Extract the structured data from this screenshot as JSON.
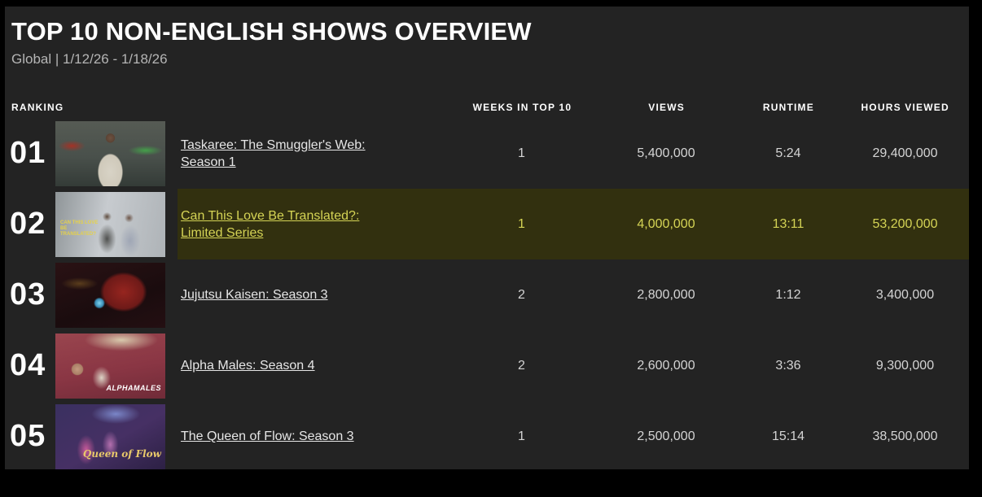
{
  "page": {
    "title": "TOP 10 NON-ENGLISH SHOWS OVERVIEW",
    "subtitle": "Global | 1/12/26 - 1/18/26"
  },
  "table": {
    "headers": {
      "ranking": "RANKING",
      "weeks": "WEEKS IN TOP 10",
      "views": "VIEWS",
      "runtime": "RUNTIME",
      "hours": "HOURS VIEWED"
    },
    "rows": [
      {
        "rank": "01",
        "title": "Taskaree: The Smuggler's Web: Season 1",
        "weeks": "1",
        "views": "5,400,000",
        "runtime": "5:24",
        "hours": "29,400,000",
        "highlighted": false,
        "thumb_label": ""
      },
      {
        "rank": "02",
        "title": "Can This Love Be Translated?: Limited Series",
        "weeks": "1",
        "views": "4,000,000",
        "runtime": "13:11",
        "hours": "53,200,000",
        "highlighted": true,
        "thumb_label": "CAN THIS LOVE BE TRANSLATED?"
      },
      {
        "rank": "03",
        "title": "Jujutsu Kaisen: Season 3",
        "weeks": "2",
        "views": "2,800,000",
        "runtime": "1:12",
        "hours": "3,400,000",
        "highlighted": false,
        "thumb_label": ""
      },
      {
        "rank": "04",
        "title": "Alpha Males: Season 4",
        "weeks": "2",
        "views": "2,600,000",
        "runtime": "3:36",
        "hours": "9,300,000",
        "highlighted": false,
        "thumb_label": "ALPHAMALES"
      },
      {
        "rank": "05",
        "title": "The Queen of Flow: Season 3",
        "weeks": "1",
        "views": "2,500,000",
        "runtime": "15:14",
        "hours": "38,500,000",
        "highlighted": false,
        "thumb_label": "Queen of Flow"
      }
    ]
  },
  "colors": {
    "background": "#232323",
    "frame": "#000000",
    "highlight_bg": "#32300f",
    "highlight_text": "#d5d455",
    "title_text": "#ffffff",
    "subtitle_text": "#b5b5b5",
    "value_text": "#d4d4d4"
  }
}
